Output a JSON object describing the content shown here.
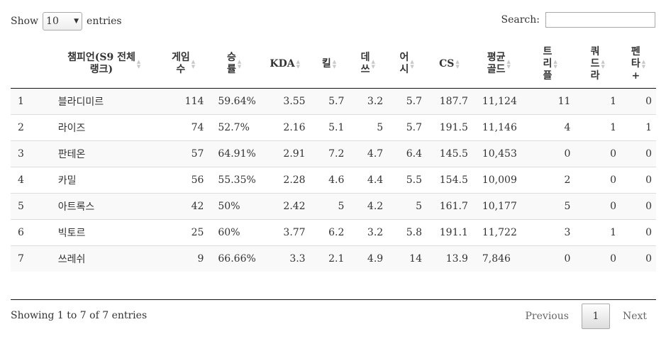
{
  "controls": {
    "show_label": "Show",
    "length_value": "10",
    "entries_label": "entries",
    "search_label": "Search:",
    "search_value": ""
  },
  "table": {
    "headers": [
      {
        "l1": "",
        "l2": ""
      },
      {
        "l1": "챔피언(S9 전체",
        "l2": "랭크)"
      },
      {
        "l1": "게임",
        "l2": "수"
      },
      {
        "l1": "승",
        "l2": "률"
      },
      {
        "l1": "KDA",
        "l2": ""
      },
      {
        "l1": "킬",
        "l2": ""
      },
      {
        "l1": "데",
        "l2": "쓰"
      },
      {
        "l1": "어",
        "l2": "시"
      },
      {
        "l1": "CS",
        "l2": ""
      },
      {
        "l1": "평균",
        "l2": "골드"
      },
      {
        "l1": "트",
        "l2": "리",
        "l3": "플"
      },
      {
        "l1": "쿼",
        "l2": "드",
        "l3": "라"
      },
      {
        "l1": "펜",
        "l2": "타",
        "l3": "+"
      }
    ],
    "rows": [
      [
        "1",
        "블라디미르",
        "114",
        "59.64%",
        "3.55",
        "5.7",
        "3.2",
        "5.7",
        "187.7",
        "11,124",
        "11",
        "1",
        "0"
      ],
      [
        "2",
        "라이즈",
        "74",
        "52.7%",
        "2.16",
        "5.1",
        "5",
        "5.7",
        "191.5",
        "11,146",
        "4",
        "1",
        "1"
      ],
      [
        "3",
        "판테온",
        "57",
        "64.91%",
        "2.91",
        "7.2",
        "4.7",
        "6.4",
        "145.5",
        "10,453",
        "0",
        "0",
        "0"
      ],
      [
        "4",
        "카밀",
        "56",
        "55.35%",
        "2.28",
        "4.6",
        "4.4",
        "5.5",
        "154.5",
        "10,009",
        "2",
        "0",
        "0"
      ],
      [
        "5",
        "아트록스",
        "42",
        "50%",
        "2.42",
        "5",
        "4.2",
        "5",
        "161.7",
        "10,177",
        "5",
        "0",
        "0"
      ],
      [
        "6",
        "빅토르",
        "25",
        "60%",
        "3.77",
        "6.2",
        "3.2",
        "5.8",
        "191.1",
        "11,722",
        "3",
        "1",
        "0"
      ],
      [
        "7",
        "쓰레쉬",
        "9",
        "66.66%",
        "3.3",
        "2.1",
        "4.9",
        "14",
        "13.9",
        "7,846",
        "0",
        "0",
        "0"
      ]
    ]
  },
  "footer": {
    "info": "Showing 1 to 7 of 7 entries",
    "previous": "Previous",
    "current_page": "1",
    "next": "Next"
  }
}
